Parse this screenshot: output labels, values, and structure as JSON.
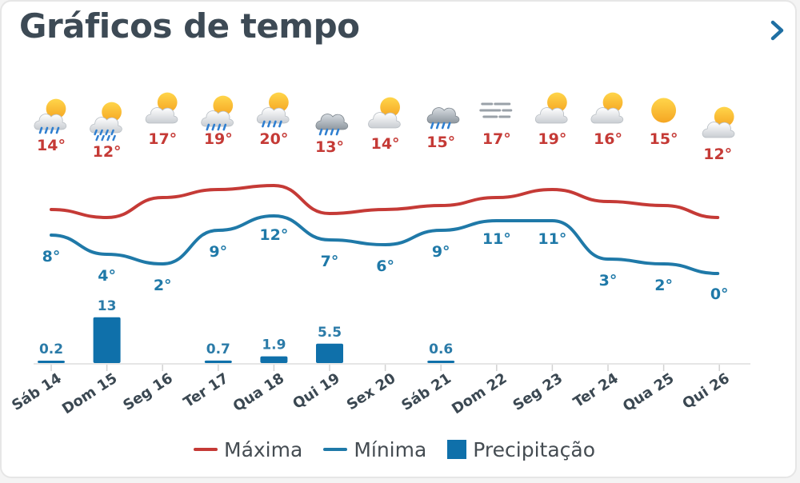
{
  "header": {
    "title": "Gráficos de tempo",
    "next_icon": "chevron-right-icon"
  },
  "colors": {
    "max": "#c53a36",
    "min": "#1f79a8",
    "precip": "#0f70aa",
    "text": "#3d4a55",
    "axis_text": "#3b4852",
    "grid": "#e6e6e6"
  },
  "legend": {
    "max_label": "Máxima",
    "min_label": "Mínima",
    "precip_label": "Precipitação"
  },
  "chart_data": {
    "type": "line",
    "categories": [
      "Sáb 14",
      "Dom 15",
      "Seg 16",
      "Ter 17",
      "Qua 18",
      "Qui 19",
      "Sex 20",
      "Sáb 21",
      "Dom 22",
      "Seg 23",
      "Ter 24",
      "Qua 25",
      "Qui 26"
    ],
    "weather_icons": [
      "sun-cloud-rain-icon",
      "sun-cloud-heavy-rain-icon",
      "sun-cloud-icon",
      "sun-cloud-rain-icon",
      "sun-cloud-rain-icon",
      "cloud-rain-icon",
      "sun-cloud-icon",
      "cloud-rain-icon",
      "fog-icon",
      "sun-cloud-icon",
      "sun-cloud-icon",
      "sun-icon",
      "sun-cloud-icon"
    ],
    "series": [
      {
        "name": "Máxima",
        "type": "line",
        "values": [
          14,
          12,
          17,
          19,
          20,
          13,
          14,
          15,
          17,
          19,
          16,
          15,
          12
        ],
        "labels": [
          "14°",
          "12°",
          "17°",
          "19°",
          "20°",
          "13°",
          "14°",
          "15°",
          "17°",
          "19°",
          "16°",
          "15°",
          "12°"
        ]
      },
      {
        "name": "Mínima",
        "type": "line",
        "values": [
          8,
          4,
          2,
          9,
          12,
          7,
          6,
          9,
          11,
          11,
          3,
          2,
          0
        ],
        "labels": [
          "8°",
          "4°",
          "2°",
          "9°",
          "12°",
          "7°",
          "6°",
          "9°",
          "11°",
          "11°",
          "3°",
          "2°",
          "0°"
        ]
      },
      {
        "name": "Precipitação",
        "type": "bar",
        "values": [
          0.2,
          13,
          0,
          0.7,
          1.9,
          5.5,
          0,
          0.6,
          0,
          0,
          0,
          0,
          0
        ],
        "labels": [
          "0.2",
          "13",
          "",
          "0.7",
          "1.9",
          "5.5",
          "",
          "0.6",
          "",
          "",
          "",
          "",
          ""
        ]
      }
    ],
    "legend_position": "bottom",
    "grid": true
  }
}
